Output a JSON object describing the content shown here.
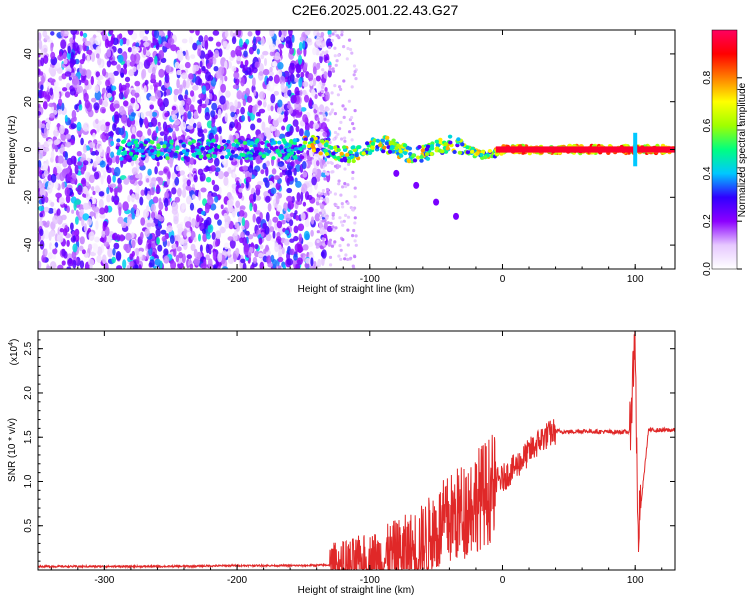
{
  "title": "C2E6.2025.001.22.43.G27",
  "chart_data": [
    {
      "type": "heatmap",
      "xlabel": "Height of straight line (km)",
      "ylabel": "Frequency (Hz)",
      "xlim": [
        -350,
        130
      ],
      "ylim": [
        -50,
        50
      ],
      "x_ticks": [
        "-300",
        "-200",
        "-100",
        "0",
        "100"
      ],
      "y_ticks": [
        "-40",
        "-20",
        "0",
        "20",
        "40"
      ],
      "colorbar": {
        "label": "Normalized spectral amplitude",
        "range": [
          0,
          1
        ],
        "ticks": [
          "0.0",
          "0.2",
          "0.4",
          "0.6",
          "0.8"
        ],
        "colormap": [
          "#ffffff",
          "#e6c8ff",
          "#8c00ff",
          "#3000ff",
          "#00c8ff",
          "#00ff80",
          "#a0ff00",
          "#ffff00",
          "#ff8000",
          "#ff0000",
          "#ff0060"
        ]
      },
      "features": {
        "noise_region_x": [
          -350,
          -130
        ],
        "carrier_line_x": [
          -150,
          130
        ],
        "carrier_freq_hz": 0,
        "branch_points": [
          [
            -80,
            -10
          ],
          [
            -65,
            -15
          ],
          [
            -50,
            -22
          ],
          [
            -35,
            -28
          ]
        ],
        "spike_at_x": 100
      }
    },
    {
      "type": "line",
      "xlabel": "Height of straight line (km)",
      "ylabel": "SNR (10 * v/v)",
      "y_scale_label": "(x10",
      "y_scale_exp": "4",
      "y_multiplier": 10000,
      "xlim": [
        -350,
        130
      ],
      "ylim": [
        0,
        2.7
      ],
      "x_ticks": [
        "-300",
        "-200",
        "-100",
        "0",
        "100"
      ],
      "y_ticks": [
        "0.5",
        "1.0",
        "1.5",
        "2.0",
        "2.5"
      ],
      "series": [
        {
          "color": "#e02828",
          "x": [
            -350,
            -300,
            -250,
            -200,
            -150,
            -120,
            -100,
            -90,
            -80,
            -70,
            -60,
            -50,
            -40,
            -30,
            -20,
            -10,
            0,
            10,
            20,
            30,
            40,
            50,
            60,
            80,
            96,
            100,
            102,
            110,
            130
          ],
          "y": [
            0.04,
            0.04,
            0.04,
            0.05,
            0.05,
            0.06,
            0.1,
            0.14,
            0.2,
            0.25,
            0.33,
            0.48,
            0.62,
            0.72,
            0.85,
            0.96,
            1.03,
            1.17,
            1.33,
            1.49,
            1.57,
            1.56,
            1.57,
            1.56,
            1.56,
            2.7,
            0.38,
            1.58,
            1.58
          ]
        }
      ]
    }
  ]
}
